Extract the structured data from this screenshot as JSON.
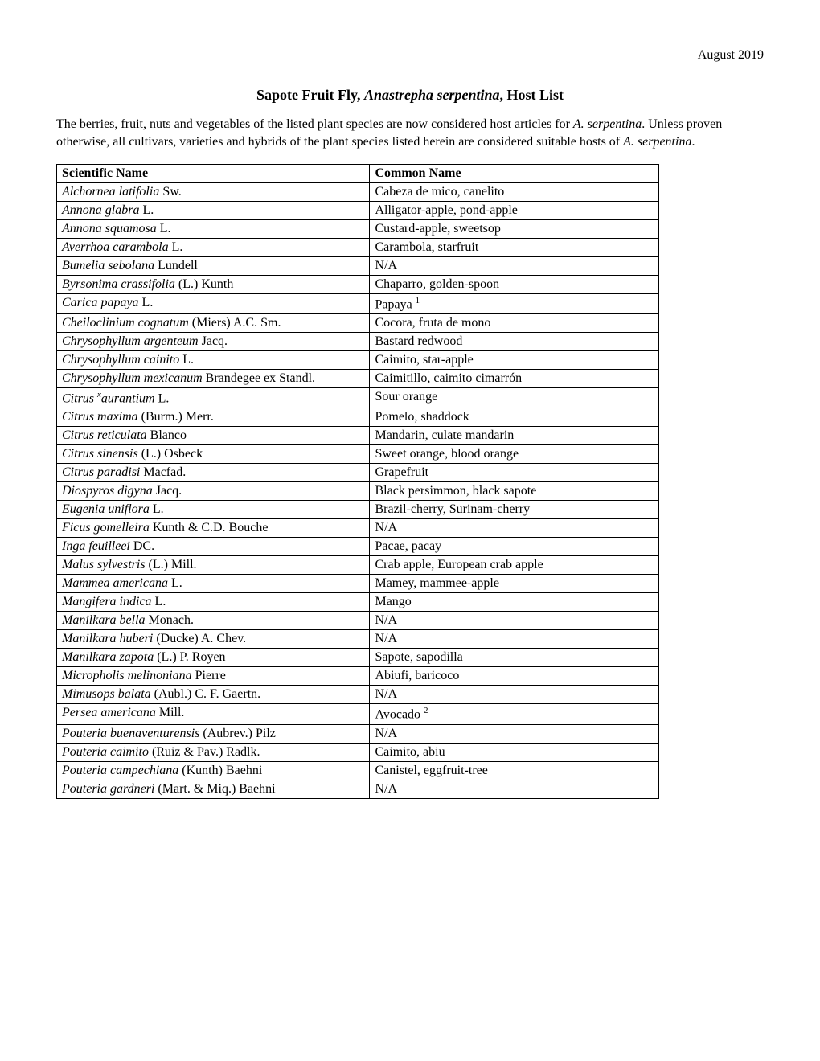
{
  "date": "August 2019",
  "title_prefix": "Sapote Fruit Fly, ",
  "title_italic": "Anastrepha serpentina",
  "title_suffix": ", Host List",
  "intro_part1": "The berries, fruit, nuts and vegetables of the listed plant species are now considered host articles for ",
  "intro_species1": "A. serpentina",
  "intro_part2": ". Unless proven otherwise, all cultivars, varieties and hybrids of the plant species listed herein are considered suitable hosts of ",
  "intro_species2": "A. serpentina",
  "intro_part3": ".",
  "table": {
    "headers": {
      "scientific": "Scientific Name",
      "common": "Common Name"
    },
    "rows": [
      {
        "sci_italic": "Alchornea latifolia",
        "sci_auth": " Sw.",
        "common": "Cabeza de mico, canelito"
      },
      {
        "sci_italic": "Annona glabra",
        "sci_auth": " L.",
        "common": "Alligator-apple, pond-apple"
      },
      {
        "sci_italic": "Annona squamosa",
        "sci_auth": " L.",
        "common": "Custard-apple, sweetsop"
      },
      {
        "sci_italic": "Averrhoa carambola",
        "sci_auth": " L.",
        "common": "Carambola, starfruit"
      },
      {
        "sci_italic": "Bumelia sebolana",
        "sci_auth": " Lundell",
        "common": "N/A"
      },
      {
        "sci_italic": "Byrsonima crassifolia",
        "sci_auth": " (L.) Kunth",
        "common": "Chaparro, golden-spoon"
      },
      {
        "sci_italic": "Carica papaya",
        "sci_auth": " L.",
        "common": "Papaya ",
        "sup": "1"
      },
      {
        "sci_italic": "Cheiloclinium cognatum",
        "sci_auth": " (Miers) A.C. Sm.",
        "common": "Cocora, fruta de mono"
      },
      {
        "sci_italic": "Chrysophyllum argenteum",
        "sci_auth": " Jacq.",
        "common": "Bastard redwood"
      },
      {
        "sci_italic": "Chrysophyllum cainito",
        "sci_auth": " L.",
        "common": "Caimito, star-apple"
      },
      {
        "sci_italic": "Chrysophyllum mexicanum",
        "sci_auth": " Brandegee ex Standl.",
        "common": "Caimitillo, caimito cimarrón"
      },
      {
        "sci_italic_pre": "Citrus ",
        "hybrid_x": "x",
        "sci_italic": "aurantium",
        "sci_auth": " L.",
        "common": "Sour orange"
      },
      {
        "sci_italic": "Citrus maxima",
        "sci_auth": " (Burm.) Merr.",
        "common": "Pomelo, shaddock"
      },
      {
        "sci_italic": "Citrus reticulata",
        "sci_auth": " Blanco",
        "common": "Mandarin, culate mandarin"
      },
      {
        "sci_italic": "Citrus sinensis",
        "sci_auth": " (L.) Osbeck",
        "common": "Sweet orange, blood orange"
      },
      {
        "sci_italic": "Citrus paradisi",
        "sci_auth": " Macfad.",
        "common": "Grapefruit"
      },
      {
        "sci_italic": "Diospyros digyna",
        "sci_auth": " Jacq.",
        "common": "Black persimmon, black sapote"
      },
      {
        "sci_italic": "Eugenia uniflora",
        "sci_auth": " L.",
        "common": "Brazil-cherry, Surinam-cherry"
      },
      {
        "sci_italic": "Ficus gomelleira",
        "sci_auth": " Kunth & C.D. Bouche",
        "common": "N/A"
      },
      {
        "sci_italic": "Inga feuilleei",
        "sci_auth": " DC.",
        "common": "Pacae, pacay"
      },
      {
        "sci_italic": "Malus sylvestris",
        "sci_auth": " (L.) Mill.",
        "common": "Crab apple, European crab apple"
      },
      {
        "sci_italic": "Mammea americana",
        "sci_auth": " L.",
        "common": "Mamey, mammee-apple"
      },
      {
        "sci_italic": "Mangifera indica",
        "sci_auth": " L.",
        "common": "Mango"
      },
      {
        "sci_italic": "Manilkara bella",
        "sci_auth": " Monach.",
        "common": "N/A"
      },
      {
        "sci_italic": "Manilkara huberi",
        "sci_auth": " (Ducke) A. Chev.",
        "common": "N/A"
      },
      {
        "sci_italic": "Manilkara zapota",
        "sci_auth": " (L.) P. Royen",
        "common": "Sapote, sapodilla"
      },
      {
        "sci_italic": "Micropholis melinoniana",
        "sci_auth": " Pierre",
        "common": "Abiufi, baricoco"
      },
      {
        "sci_italic": "Mimusops balata",
        "sci_auth": " (Aubl.) C. F. Gaertn.",
        "common": "N/A"
      },
      {
        "sci_italic": "Persea americana",
        "sci_auth": " Mill.",
        "common": "Avocado ",
        "sup": "2"
      },
      {
        "sci_italic": "Pouteria buenaventurensis",
        "sci_auth": " (Aubrev.) Pilz",
        "common": "N/A"
      },
      {
        "sci_italic": "Pouteria caimito",
        "sci_auth": " (Ruiz & Pav.) Radlk.",
        "common": "Caimito, abiu"
      },
      {
        "sci_italic": "Pouteria campechiana",
        "sci_auth": " (Kunth) Baehni",
        "common": "Canistel, eggfruit-tree"
      },
      {
        "sci_italic": "Pouteria gardneri",
        "sci_auth": " (Mart. & Miq.) Baehni",
        "common": "N/A"
      }
    ]
  }
}
